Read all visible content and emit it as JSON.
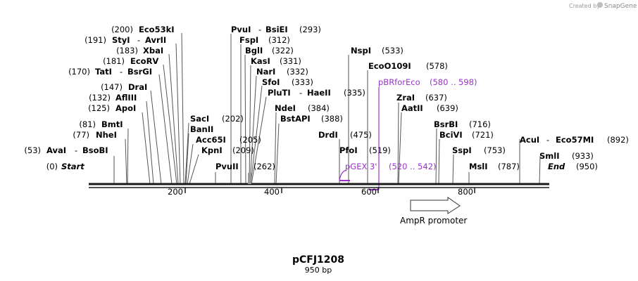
{
  "credit": {
    "prefix": "Created by",
    "brand": "SnapGene"
  },
  "plasmid": {
    "name": "pCFJ1208",
    "length_label": "950 bp",
    "length": 950
  },
  "sites": [
    {
      "pos": "(0)",
      "name": "Start",
      "sep": "",
      "name2": "",
      "italic": true
    },
    {
      "pos": "(53)",
      "name": "AvaI",
      "sep": "-",
      "name2": "BsoBI"
    },
    {
      "pos": "(77)",
      "name": "NheI",
      "sep": "",
      "name2": ""
    },
    {
      "pos": "(81)",
      "name": "BmtI",
      "sep": "",
      "name2": ""
    },
    {
      "pos": "(125)",
      "name": "ApoI",
      "sep": "",
      "name2": ""
    },
    {
      "pos": "(132)",
      "name": "AflIII",
      "sep": "",
      "name2": ""
    },
    {
      "pos": "(147)",
      "name": "DraI",
      "sep": "",
      "name2": ""
    },
    {
      "pos": "(170)",
      "name": "TatI",
      "sep": "-",
      "name2": "BsrGI"
    },
    {
      "pos": "(181)",
      "name": "EcoRV",
      "sep": "",
      "name2": ""
    },
    {
      "pos": "(183)",
      "name": "XbaI",
      "sep": "",
      "name2": ""
    },
    {
      "pos": "(191)",
      "name": "StyI",
      "sep": "-",
      "name2": "AvrII"
    },
    {
      "pos": "(200)",
      "name": "Eco53kI",
      "sep": "",
      "name2": ""
    },
    {
      "pos": "(202)",
      "name": "SacI",
      "sep": "",
      "name2": ""
    },
    {
      "pos": "",
      "name": "BanII",
      "sep": "",
      "name2": ""
    },
    {
      "pos": "(205)",
      "name": "Acc65I",
      "sep": "",
      "name2": ""
    },
    {
      "pos": "(209)",
      "name": "KpnI",
      "sep": "",
      "name2": ""
    },
    {
      "pos": "(262)",
      "name": "PvuII",
      "sep": "",
      "name2": ""
    },
    {
      "pos": "(293)",
      "name": "PvuI",
      "sep": "-",
      "name2": "BsiEI"
    },
    {
      "pos": "(312)",
      "name": "FspI",
      "sep": "",
      "name2": ""
    },
    {
      "pos": "(322)",
      "name": "BglI",
      "sep": "",
      "name2": ""
    },
    {
      "pos": "(331)",
      "name": "KasI",
      "sep": "",
      "name2": ""
    },
    {
      "pos": "(332)",
      "name": "NarI",
      "sep": "",
      "name2": ""
    },
    {
      "pos": "(333)",
      "name": "SfoI",
      "sep": "",
      "name2": ""
    },
    {
      "pos": "(335)",
      "name": "PluTI",
      "sep": "-",
      "name2": "HaeII"
    },
    {
      "pos": "(384)",
      "name": "NdeI",
      "sep": "",
      "name2": ""
    },
    {
      "pos": "(388)",
      "name": "BstAPI",
      "sep": "",
      "name2": ""
    },
    {
      "pos": "(475)",
      "name": "DrdI",
      "sep": "",
      "name2": ""
    },
    {
      "pos": "(519)",
      "name": "PfoI",
      "sep": "",
      "name2": ""
    },
    {
      "pos": "(533)",
      "name": "NspI",
      "sep": "",
      "name2": ""
    },
    {
      "pos": "(578)",
      "name": "EcoO109I",
      "sep": "",
      "name2": ""
    },
    {
      "pos": "(637)",
      "name": "ZraI",
      "sep": "",
      "name2": ""
    },
    {
      "pos": "(639)",
      "name": "AatII",
      "sep": "",
      "name2": ""
    },
    {
      "pos": "(716)",
      "name": "BsrBI",
      "sep": "",
      "name2": ""
    },
    {
      "pos": "(721)",
      "name": "BciVI",
      "sep": "",
      "name2": ""
    },
    {
      "pos": "(753)",
      "name": "SspI",
      "sep": "",
      "name2": ""
    },
    {
      "pos": "(787)",
      "name": "MslI",
      "sep": "",
      "name2": ""
    },
    {
      "pos": "(892)",
      "name": "AcuI",
      "sep": "-",
      "name2": "Eco57MI"
    },
    {
      "pos": "(933)",
      "name": "SmlI",
      "sep": "",
      "name2": ""
    },
    {
      "pos": "(950)",
      "name": "End",
      "sep": "",
      "name2": "",
      "italic": true
    }
  ],
  "primers": [
    {
      "name": "pBRforEco",
      "range": "(580 .. 598)"
    },
    {
      "name": "pGEX 3'",
      "range": "(520 .. 542)"
    }
  ],
  "feature": {
    "name": "AmpR promoter"
  },
  "ruler": {
    "ticks": [
      "200",
      "400",
      "600",
      "800"
    ]
  },
  "colors": {
    "primer": "#9a33cc",
    "backbone": "#1a1a1a"
  }
}
